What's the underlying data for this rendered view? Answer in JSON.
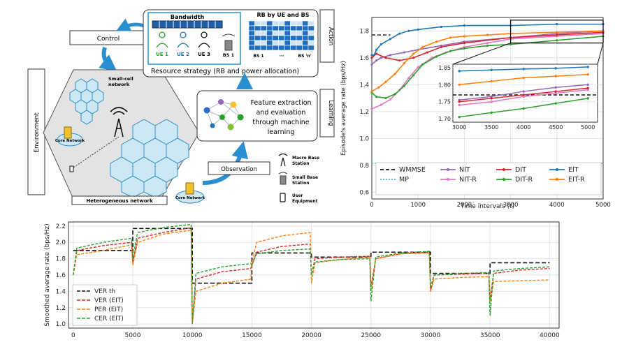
{
  "diagram": {
    "control_label": "Control",
    "environment_label": "Environment",
    "action_label": "Action",
    "learning_label": "Learning",
    "observation_label": "Observation",
    "bandwidth_label": "Bandwidth",
    "ue_labels": [
      "UE 1",
      "UE 2",
      "UE 3"
    ],
    "bs1_label": "BS 1",
    "rb_title": "RB by UE and BS",
    "rb_x_labels": [
      "BS 1",
      "···",
      "BS 'n'"
    ],
    "resource_strategy": "Resource strategy (RB and power allocation)",
    "feature_text": [
      "Feature extraction",
      "and evaluation",
      "through machine",
      "learning"
    ],
    "small_cell_label": [
      "Small-cell",
      "network"
    ],
    "core_network_label": "Core Network",
    "het_network_label": "Heterogeneous network",
    "legend": [
      {
        "icon": "antenna-icon",
        "lines": [
          "Macro Base",
          "Station"
        ]
      },
      {
        "icon": "small-bs-icon",
        "lines": [
          "Small Base",
          "Station"
        ]
      },
      {
        "icon": "phone-icon",
        "lines": [
          "User",
          "Equipment"
        ]
      }
    ]
  },
  "chart_data": [
    {
      "type": "line",
      "xlabel": "Time intervals (t)",
      "ylabel": "Episode's average rate (bps/Hz)",
      "xlim": [
        0,
        5000
      ],
      "ylim": [
        0.55,
        1.9
      ],
      "xticks": [
        "0",
        "1000",
        "2000",
        "3000",
        "4000",
        "5000"
      ],
      "yticks": [
        "0.6",
        "0.8",
        "1.0",
        "1.2",
        "1.4",
        "1.6",
        "1.8"
      ],
      "grid": true,
      "legend_position": "bottom",
      "series": [
        {
          "name": "WMMSE",
          "color": "#111111",
          "style": "dashed",
          "x": [
            0,
            400
          ],
          "y": [
            1.77,
            1.77
          ]
        },
        {
          "name": "MP",
          "color": "#5ab4d6",
          "style": "dotted",
          "x": [
            0,
            5000
          ],
          "y": [
            0.815,
            0.815
          ]
        },
        {
          "name": "NIT",
          "color": "#9467bd",
          "style": "solid",
          "x": [
            0,
            100,
            200,
            400,
            700,
            1000,
            1500,
            2000,
            3000,
            4000,
            5000
          ],
          "y": [
            1.55,
            1.58,
            1.6,
            1.62,
            1.64,
            1.66,
            1.69,
            1.72,
            1.75,
            1.78,
            1.8
          ]
        },
        {
          "name": "NIT-R",
          "color": "#e377c2",
          "style": "solid",
          "x": [
            0,
            200,
            400,
            600,
            800,
            1000,
            1300,
            1600,
            2000,
            2500,
            3000,
            4000,
            5000
          ],
          "y": [
            1.22,
            1.25,
            1.29,
            1.36,
            1.45,
            1.53,
            1.6,
            1.64,
            1.68,
            1.71,
            1.74,
            1.76,
            1.78
          ]
        },
        {
          "name": "DIT",
          "color": "#d62728",
          "style": "solid",
          "x": [
            0,
            100,
            300,
            600,
            900,
            1200,
            1500,
            2000,
            3000,
            4000,
            5000
          ],
          "y": [
            1.6,
            1.63,
            1.6,
            1.58,
            1.6,
            1.64,
            1.68,
            1.71,
            1.75,
            1.77,
            1.79
          ]
        },
        {
          "name": "DIT-R",
          "color": "#2ca02c",
          "style": "solid",
          "x": [
            0,
            100,
            300,
            500,
            700,
            900,
            1100,
            1400,
            1700,
            2000,
            2500,
            3000,
            4000,
            5000
          ],
          "y": [
            1.34,
            1.31,
            1.3,
            1.33,
            1.39,
            1.47,
            1.55,
            1.61,
            1.65,
            1.67,
            1.69,
            1.7,
            1.73,
            1.76
          ]
        },
        {
          "name": "EIT",
          "color": "#1f77b4",
          "style": "solid",
          "x": [
            0,
            50,
            100,
            200,
            400,
            600,
            800,
            1000,
            1500,
            2000,
            3000,
            4000,
            5000
          ],
          "y": [
            1.62,
            1.62,
            1.66,
            1.7,
            1.74,
            1.78,
            1.8,
            1.81,
            1.83,
            1.84,
            1.84,
            1.85,
            1.85
          ]
        },
        {
          "name": "EIT-R",
          "color": "#ff7f0e",
          "style": "solid",
          "x": [
            0,
            150,
            300,
            500,
            700,
            900,
            1100,
            1400,
            1700,
            2000,
            2500,
            3000,
            4000,
            5000
          ],
          "y": [
            1.35,
            1.38,
            1.42,
            1.48,
            1.56,
            1.63,
            1.68,
            1.72,
            1.75,
            1.76,
            1.77,
            1.78,
            1.79,
            1.8
          ]
        }
      ],
      "inset": {
        "xlim": [
          2900,
          5150
        ],
        "ylim": [
          1.69,
          1.86
        ],
        "xticks": [
          "3000",
          "3500",
          "4000",
          "4500",
          "5000"
        ],
        "yticks": [
          "1.70",
          "1.75",
          "1.80",
          "1.85"
        ],
        "series": [
          {
            "name": "WMMSE",
            "color": "#111111",
            "style": "dashed",
            "x": [
              2900,
              5150
            ],
            "y": [
              1.77,
              1.77
            ]
          },
          {
            "name": "NIT",
            "color": "#9467bd",
            "style": "solid",
            "x": [
              3000,
              3500,
              4000,
              4500,
              5000
            ],
            "y": [
              1.755,
              1.765,
              1.78,
              1.792,
              1.8
            ]
          },
          {
            "name": "NIT-R",
            "color": "#e377c2",
            "style": "solid",
            "x": [
              3000,
              3500,
              4000,
              4500,
              5000
            ],
            "y": [
              1.74,
              1.75,
              1.765,
              1.775,
              1.785
            ]
          },
          {
            "name": "DIT",
            "color": "#d62728",
            "style": "solid",
            "x": [
              3000,
              3500,
              4000,
              4500,
              5000
            ],
            "y": [
              1.75,
              1.76,
              1.77,
              1.78,
              1.79
            ]
          },
          {
            "name": "DIT-R",
            "color": "#2ca02c",
            "style": "solid",
            "x": [
              3000,
              3500,
              4000,
              4500,
              5000
            ],
            "y": [
              1.705,
              1.718,
              1.73,
              1.745,
              1.76
            ]
          },
          {
            "name": "EIT",
            "color": "#1f77b4",
            "style": "solid",
            "x": [
              3000,
              3500,
              4000,
              4500,
              5000
            ],
            "y": [
              1.84,
              1.843,
              1.846,
              1.848,
              1.852
            ]
          },
          {
            "name": "EIT-R",
            "color": "#ff7f0e",
            "style": "solid",
            "x": [
              3000,
              3500,
              4000,
              4500,
              5000
            ],
            "y": [
              1.8,
              1.81,
              1.82,
              1.825,
              1.83
            ]
          }
        ]
      }
    },
    {
      "type": "line",
      "xlabel": "",
      "ylabel": "Smoothed average rate (bps/Hz)",
      "xlim": [
        -400,
        40800
      ],
      "ylim": [
        0.95,
        2.25
      ],
      "xticks": [
        "0",
        "5000",
        "10000",
        "15000",
        "20000",
        "25000",
        "30000",
        "35000",
        "40000"
      ],
      "yticks": [
        "1.0",
        "1.2",
        "1.4",
        "1.6",
        "1.8",
        "2.0",
        "2.2"
      ],
      "grid": true,
      "legend_position": "bottom-left",
      "series": [
        {
          "name": "VER th",
          "color": "#111111",
          "style": "dashed",
          "x": [
            0,
            5000,
            5000,
            10000,
            10000,
            15000,
            15000,
            20000,
            20000,
            25000,
            25000,
            30000,
            30000,
            35000,
            35000,
            40000
          ],
          "y": [
            1.9,
            1.9,
            2.17,
            2.17,
            1.5,
            1.5,
            1.87,
            1.87,
            1.82,
            1.82,
            1.88,
            1.88,
            1.62,
            1.62,
            1.75,
            1.75
          ]
        },
        {
          "name": "VER (EIT)",
          "color": "#d62728",
          "style": "dashed",
          "x": [
            0,
            300,
            2500,
            4900,
            5000,
            5400,
            7500,
            9900,
            10000,
            10300,
            12500,
            14900,
            15000,
            15400,
            17500,
            19900,
            20000,
            20300,
            22500,
            24900,
            25000,
            25400,
            27500,
            29900,
            30000,
            30300,
            32500,
            34900,
            35000,
            35300,
            37500,
            40000
          ],
          "y": [
            1.6,
            1.9,
            1.96,
            2.0,
            1.75,
            2.05,
            2.12,
            2.18,
            1.0,
            1.55,
            1.64,
            1.68,
            1.72,
            1.88,
            1.95,
            1.98,
            1.6,
            1.8,
            1.82,
            1.83,
            1.45,
            1.8,
            1.86,
            1.88,
            1.4,
            1.6,
            1.61,
            1.62,
            1.3,
            1.62,
            1.66,
            1.68
          ]
        },
        {
          "name": "PER (EIT)",
          "color": "#ff7f0e",
          "style": "dashed",
          "x": [
            0,
            300,
            2500,
            4900,
            5000,
            5400,
            7500,
            9900,
            10000,
            10300,
            12500,
            14900,
            15000,
            15400,
            17500,
            19900,
            20000,
            20300,
            22500,
            24900,
            25000,
            25400,
            27500,
            29900,
            30000,
            30300,
            32500,
            34900,
            35000,
            35300,
            37500,
            40000
          ],
          "y": [
            1.6,
            1.85,
            1.9,
            1.97,
            1.72,
            2.0,
            2.1,
            2.15,
            1.0,
            1.4,
            1.5,
            1.55,
            1.75,
            2.0,
            2.08,
            2.12,
            1.5,
            1.75,
            1.79,
            1.82,
            1.4,
            1.8,
            1.86,
            1.87,
            1.4,
            1.55,
            1.57,
            1.58,
            1.25,
            1.52,
            1.53,
            1.54
          ]
        },
        {
          "name": "CER (EIT)",
          "color": "#2ca02c",
          "style": "dashed",
          "x": [
            0,
            300,
            2500,
            4900,
            5000,
            5400,
            7500,
            9900,
            10000,
            10300,
            12500,
            14900,
            15000,
            15400,
            17500,
            19900,
            20000,
            20300,
            22500,
            24900,
            25000,
            25400,
            27500,
            29900,
            30000,
            30300,
            32500,
            34900,
            35000,
            35300,
            37500,
            40000
          ],
          "y": [
            1.6,
            1.93,
            2.0,
            2.05,
            1.8,
            2.12,
            2.18,
            2.22,
            1.0,
            1.62,
            1.7,
            1.74,
            1.72,
            1.86,
            1.9,
            1.92,
            1.6,
            1.76,
            1.79,
            1.8,
            1.28,
            1.82,
            1.87,
            1.89,
            1.45,
            1.6,
            1.62,
            1.63,
            1.1,
            1.65,
            1.68,
            1.7
          ]
        }
      ]
    }
  ]
}
